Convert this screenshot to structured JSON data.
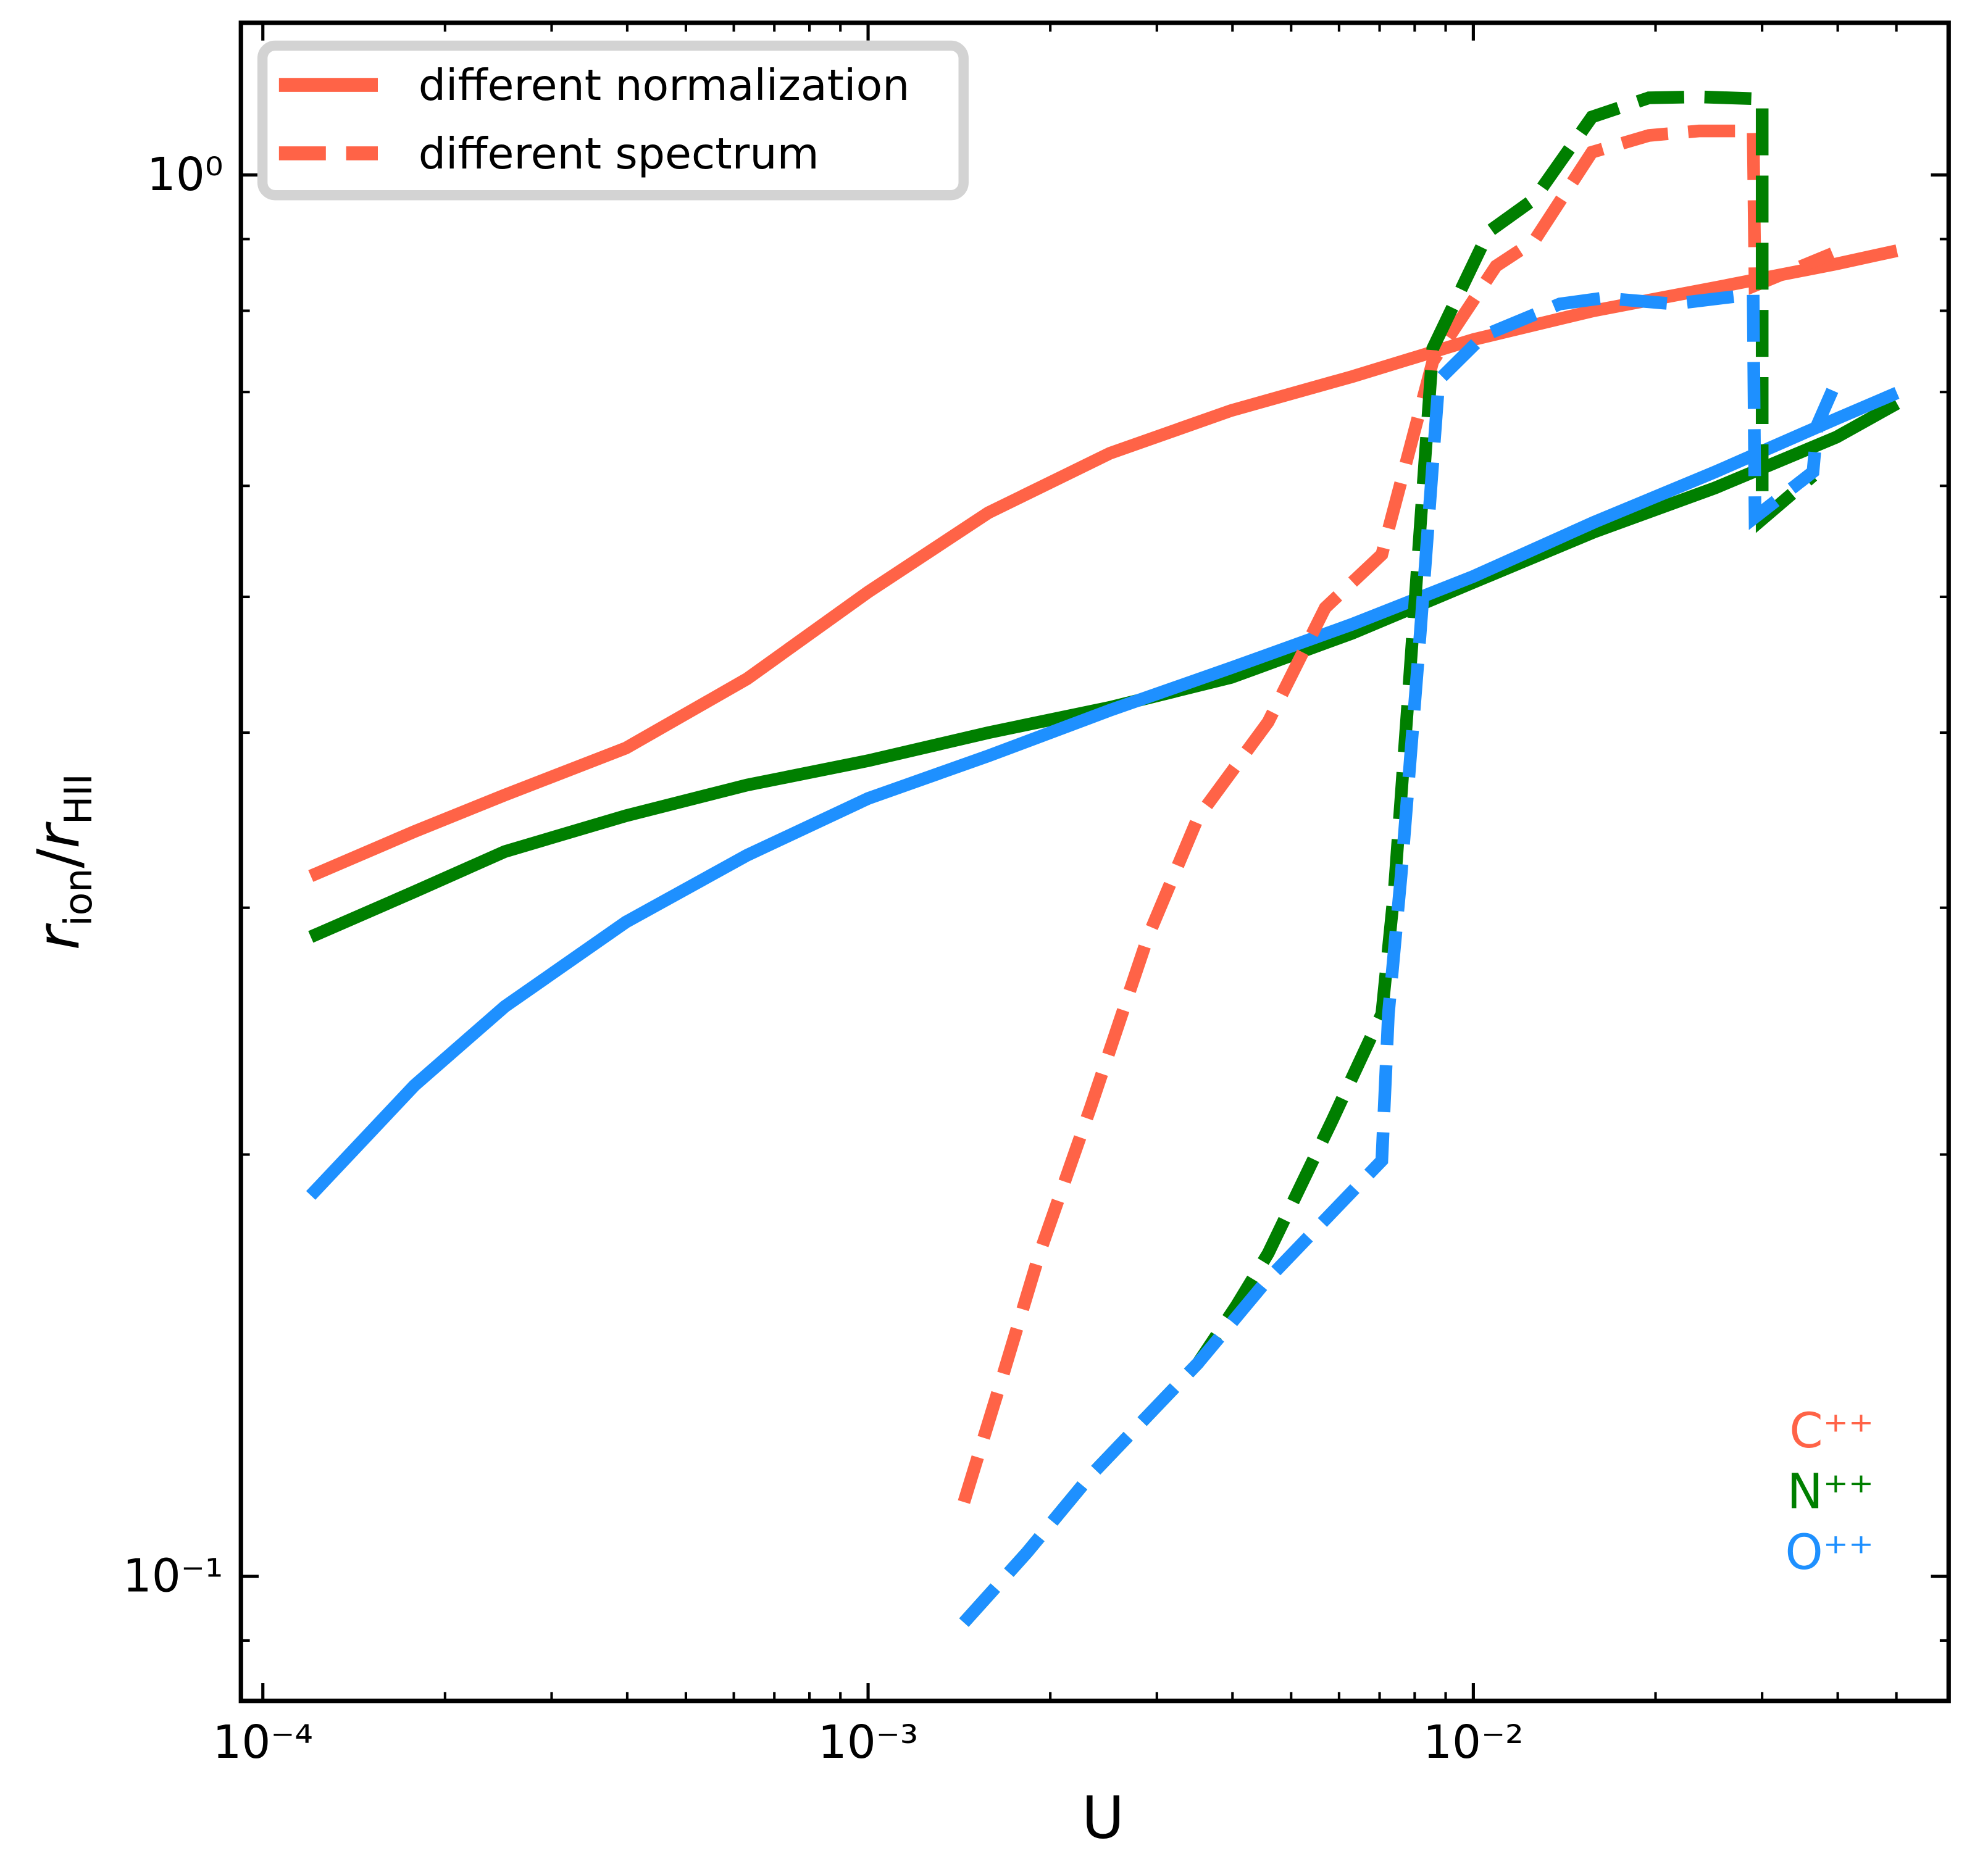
{
  "chart_data": {
    "type": "line",
    "xscale": "log",
    "yscale": "log",
    "xlabel": "U",
    "ylabel_parts": [
      "r",
      "ion",
      "/",
      "r",
      "HII"
    ],
    "xlim": [
      9.2e-05,
      0.061
    ],
    "ylim": [
      0.0815,
      1.284
    ],
    "xticks": [
      {
        "value": 0.0001,
        "label": "10⁻⁴"
      },
      {
        "value": 0.001,
        "label": "10⁻³"
      },
      {
        "value": 0.01,
        "label": "10⁻²"
      }
    ],
    "yticks": [
      {
        "value": 0.1,
        "label": "10⁻¹"
      },
      {
        "value": 1,
        "label": "10⁰"
      }
    ],
    "xminorticks": [
      0.0002,
      0.0003,
      0.0004,
      0.0005,
      0.0006,
      0.0007,
      0.0008,
      0.0009,
      0.002,
      0.003,
      0.004,
      0.005,
      0.006,
      0.007,
      0.008,
      0.009,
      0.02,
      0.03,
      0.04,
      0.05
    ],
    "yminorticks": [
      0.09,
      0.2,
      0.3,
      0.4,
      0.5,
      0.6,
      0.7,
      0.8,
      0.9
    ],
    "legend": {
      "loc": "upper left",
      "entries": [
        {
          "label": "different normalization",
          "dashed": false,
          "color": "#ff6347"
        },
        {
          "label": "different spectrum",
          "dashed": true,
          "color": "#ff6347"
        }
      ]
    },
    "series": [
      {
        "color": "#ff6347",
        "dashed": false,
        "x": [
          0.00012,
          0.000178,
          0.000251,
          0.000398,
          0.000631,
          0.001,
          0.00158,
          0.00251,
          0.00398,
          0.00631,
          0.01,
          0.0158,
          0.0251,
          0.0398,
          0.0501
        ],
        "values": [
          0.316,
          0.34,
          0.361,
          0.39,
          0.437,
          0.504,
          0.574,
          0.633,
          0.679,
          0.718,
          0.763,
          0.8,
          0.831,
          0.864,
          0.883
        ]
      },
      {
        "color": "#007f00",
        "dashed": false,
        "x": [
          0.00012,
          0.000178,
          0.000251,
          0.000398,
          0.000631,
          0.001,
          0.00158,
          0.00251,
          0.00398,
          0.00631,
          0.01,
          0.0158,
          0.0251,
          0.0398,
          0.0501
        ],
        "values": [
          0.286,
          0.308,
          0.329,
          0.349,
          0.367,
          0.382,
          0.4,
          0.417,
          0.438,
          0.471,
          0.512,
          0.556,
          0.598,
          0.65,
          0.687
        ]
      },
      {
        "color": "#1e90ff",
        "dashed": false,
        "x": [
          0.00012,
          0.000178,
          0.000251,
          0.000398,
          0.000631,
          0.001,
          0.00158,
          0.00251,
          0.00398,
          0.00631,
          0.01,
          0.0158,
          0.0251,
          0.0398,
          0.0501
        ],
        "values": [
          0.187,
          0.224,
          0.255,
          0.293,
          0.327,
          0.359,
          0.385,
          0.415,
          0.445,
          0.478,
          0.517,
          0.565,
          0.614,
          0.67,
          0.699
        ]
      },
      {
        "color": "#ff6347",
        "dashed": true,
        "x": [
          0.00144,
          0.00166,
          0.00192,
          0.00233,
          0.0029,
          0.00351,
          0.00458,
          0.00569,
          0.00706,
          0.00857,
          0.0109,
          0.0126,
          0.0157,
          0.0195,
          0.0236,
          0.029,
          0.0292,
          0.0392
        ],
        "values": [
          0.113,
          0.138,
          0.17,
          0.216,
          0.286,
          0.348,
          0.407,
          0.491,
          0.536,
          0.736,
          0.861,
          0.897,
          1.038,
          1.067,
          1.075,
          1.075,
          0.834,
          0.879
        ]
      },
      {
        "color": "#007f00",
        "dashed": true,
        "x": [
          0.00144,
          0.00183,
          0.00233,
          0.00351,
          0.00406,
          0.00458,
          0.00583,
          0.00706,
          0.00741,
          0.00778,
          0.00857,
          0.0106,
          0.0126,
          0.0157,
          0.0195,
          0.0236,
          0.03,
          0.03,
          0.0364
        ],
        "values": [
          0.0927,
          0.104,
          0.118,
          0.142,
          0.156,
          0.17,
          0.211,
          0.252,
          0.31,
          0.415,
          0.752,
          0.911,
          0.961,
          1.1,
          1.135,
          1.137,
          1.133,
          0.568,
          0.61
        ]
      },
      {
        "color": "#1e90ff",
        "dashed": true,
        "x": [
          0.00144,
          0.00183,
          0.00233,
          0.00351,
          0.00458,
          0.00706,
          0.00724,
          0.0076,
          0.00817,
          0.00877,
          0.0104,
          0.0139,
          0.0164,
          0.0214,
          0.029,
          0.0292,
          0.0364,
          0.037,
          0.0392
        ],
        "values": [
          0.0927,
          0.104,
          0.118,
          0.142,
          0.163,
          0.198,
          0.252,
          0.317,
          0.471,
          0.714,
          0.768,
          0.809,
          0.817,
          0.809,
          0.822,
          0.57,
          0.614,
          0.663,
          0.702
        ]
      }
    ],
    "annotations": [
      {
        "text": "C⁺⁺",
        "color": "#ff6347"
      },
      {
        "text": "N⁺⁺",
        "color": "#007f00"
      },
      {
        "text": "O⁺⁺",
        "color": "#1e90ff"
      }
    ]
  }
}
